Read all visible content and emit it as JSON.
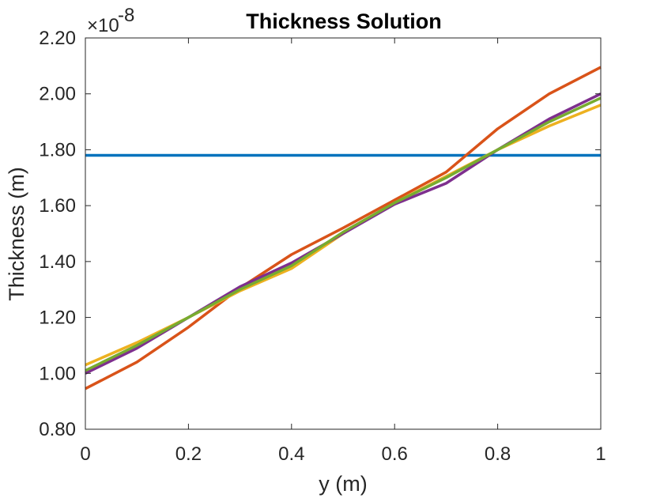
{
  "chart_data": {
    "type": "line",
    "title": "Thickness Solution",
    "xlabel": "y (m)",
    "ylabel": "Thickness (m)",
    "exponent_label": "×10",
    "exponent_power": "-8",
    "xlim": [
      0,
      1
    ],
    "ylim": [
      0.8,
      2.2
    ],
    "x_ticks": [
      0,
      0.2,
      0.4,
      0.6,
      0.8,
      1
    ],
    "x_tick_labels": [
      "0",
      "0.2",
      "0.4",
      "0.6",
      "0.8",
      "1"
    ],
    "y_ticks": [
      0.8,
      1.0,
      1.2,
      1.4,
      1.6,
      1.8,
      2.0,
      2.2
    ],
    "y_tick_labels": [
      "0.80",
      "1.00",
      "1.20",
      "1.40",
      "1.60",
      "1.80",
      "2.00",
      "2.20"
    ],
    "grid": false,
    "x": [
      0,
      0.1,
      0.2,
      0.3,
      0.4,
      0.5,
      0.6,
      0.7,
      0.8,
      0.9,
      1.0
    ],
    "series": [
      {
        "color": "#0072BD",
        "values": [
          1.78,
          1.78,
          1.78,
          1.78,
          1.78,
          1.78,
          1.78,
          1.78,
          1.78,
          1.78,
          1.78
        ]
      },
      {
        "color": "#D95319",
        "values": [
          0.945,
          1.04,
          1.165,
          1.305,
          1.425,
          1.52,
          1.62,
          1.72,
          1.875,
          2.0,
          2.095
        ]
      },
      {
        "color": "#EDB120",
        "values": [
          1.03,
          1.11,
          1.2,
          1.295,
          1.375,
          1.5,
          1.61,
          1.705,
          1.8,
          1.885,
          1.96
        ]
      },
      {
        "color": "#7E2F8E",
        "values": [
          1.0,
          1.09,
          1.2,
          1.31,
          1.395,
          1.5,
          1.605,
          1.68,
          1.8,
          1.91,
          2.0
        ]
      },
      {
        "color": "#77AC30",
        "values": [
          1.01,
          1.1,
          1.2,
          1.3,
          1.385,
          1.505,
          1.61,
          1.7,
          1.8,
          1.9,
          1.985
        ]
      }
    ]
  }
}
